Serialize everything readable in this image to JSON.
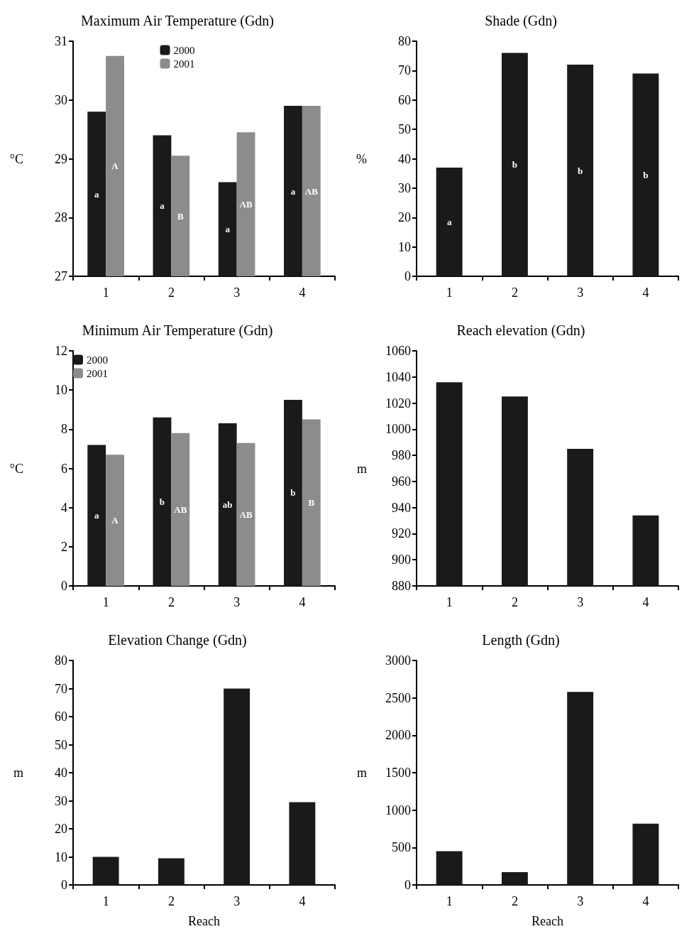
{
  "chart_data": [
    {
      "type": "bar",
      "title": "Maximum Air Temperature (Gdn)",
      "ylabel": "°C",
      "categories": [
        "1",
        "2",
        "3",
        "4"
      ],
      "series": [
        {
          "name": "2000",
          "color": "#1a1a1a",
          "values": [
            29.8,
            29.4,
            28.6,
            29.9
          ],
          "value_labels": [
            "a",
            "a",
            "a",
            "a"
          ]
        },
        {
          "name": "2001",
          "color": "#8c8c8c",
          "values": [
            30.75,
            29.05,
            29.45,
            29.9
          ],
          "value_labels": [
            "A",
            "B",
            "AB",
            "AB"
          ]
        }
      ],
      "ylim": [
        27,
        31
      ],
      "yticks": [
        27,
        28,
        29,
        30,
        31
      ],
      "legend": "top",
      "grid": false
    },
    {
      "type": "bar",
      "title": "Shade (Gdn)",
      "ylabel": "%",
      "categories": [
        "1",
        "2",
        "3",
        "4"
      ],
      "series": [
        {
          "color": "#1a1a1a",
          "values": [
            37,
            76,
            72,
            69
          ],
          "value_labels": [
            "a",
            "b",
            "b",
            "b"
          ]
        }
      ],
      "ylim": [
        0,
        80
      ],
      "yticks": [
        0,
        10,
        20,
        30,
        40,
        50,
        60,
        70,
        80
      ],
      "legend": false,
      "grid": false
    },
    {
      "type": "bar",
      "title": "Minimum Air Temperature (Gdn)",
      "ylabel": "°C",
      "categories": [
        "1",
        "2",
        "3",
        "4"
      ],
      "series": [
        {
          "name": "2000",
          "color": "#1a1a1a",
          "values": [
            7.2,
            8.6,
            8.3,
            9.5
          ],
          "value_labels": [
            "a",
            "b",
            "ab",
            "b"
          ]
        },
        {
          "name": "2001",
          "color": "#8c8c8c",
          "values": [
            6.7,
            7.8,
            7.3,
            8.5
          ],
          "value_labels": [
            "A",
            "AB",
            "AB",
            "B"
          ]
        }
      ],
      "ylim": [
        0,
        12
      ],
      "yticks": [
        0,
        2,
        4,
        6,
        8,
        10,
        12
      ],
      "legend": "top left",
      "grid": false
    },
    {
      "type": "bar",
      "title": "Reach elevation (Gdn)",
      "ylabel": "m",
      "categories": [
        "1",
        "2",
        "3",
        "4"
      ],
      "series": [
        {
          "color": "#1a1a1a",
          "values": [
            1036,
            1025,
            985,
            934
          ]
        }
      ],
      "ylim": [
        880,
        1060
      ],
      "yticks": [
        880,
        900,
        920,
        940,
        960,
        980,
        1000,
        1020,
        1040,
        1060
      ],
      "legend": false,
      "grid": false
    },
    {
      "type": "bar",
      "title": "Elevation Change (Gdn)",
      "ylabel": "m",
      "xlabel": "Reach",
      "categories": [
        "1",
        "2",
        "3",
        "4"
      ],
      "series": [
        {
          "color": "#1a1a1a",
          "values": [
            10,
            9.5,
            70,
            29.5
          ]
        }
      ],
      "ylim": [
        0,
        80
      ],
      "yticks": [
        0,
        10,
        20,
        30,
        40,
        50,
        60,
        70,
        80
      ],
      "legend": false,
      "grid": false
    },
    {
      "type": "bar",
      "title": "Length (Gdn)",
      "ylabel": "m",
      "xlabel": "Reach",
      "categories": [
        "1",
        "2",
        "3",
        "4"
      ],
      "series": [
        {
          "color": "#1a1a1a",
          "values": [
            450,
            170,
            2580,
            820
          ]
        }
      ],
      "ylim": [
        0,
        3000
      ],
      "yticks": [
        0,
        500,
        1000,
        1500,
        2000,
        2500,
        3000
      ],
      "legend": false,
      "grid": false
    }
  ]
}
